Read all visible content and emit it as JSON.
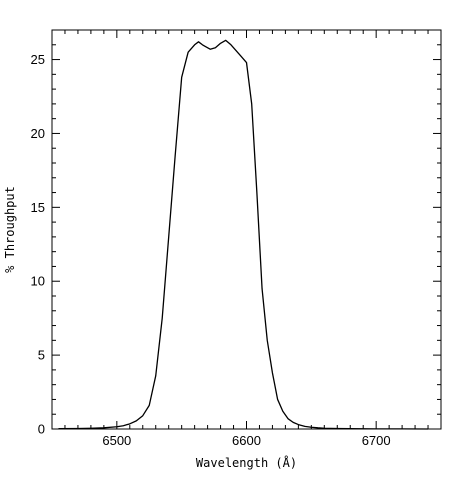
{
  "chart_data": {
    "type": "line",
    "title": "",
    "xlabel": "Wavelength (Å)",
    "ylabel": "% Throughput",
    "xlim": [
      6450,
      6750
    ],
    "ylim": [
      0,
      27
    ],
    "x_ticks": [
      6500,
      6600,
      6700
    ],
    "y_ticks": [
      0,
      5,
      10,
      15,
      20,
      25
    ],
    "x_minor_step": 10,
    "y_minor_step": 1,
    "grid": false,
    "line_color": "#000000",
    "series": [
      {
        "x": [
          6455,
          6470,
          6480,
          6490,
          6500,
          6505,
          6510,
          6515,
          6520,
          6525,
          6530,
          6535,
          6540,
          6545,
          6550,
          6555,
          6560,
          6563,
          6566,
          6568,
          6572,
          6576,
          6580,
          6584,
          6588,
          6592,
          6596,
          6600,
          6604,
          6608,
          6612,
          6616,
          6620,
          6624,
          6628,
          6632,
          6636,
          6640,
          6645,
          6650,
          6655,
          6660,
          6670,
          6680,
          6700,
          6720,
          6740
        ],
        "y": [
          0.02,
          0.03,
          0.05,
          0.08,
          0.15,
          0.22,
          0.35,
          0.55,
          0.9,
          1.6,
          3.6,
          7.5,
          13.0,
          18.5,
          23.8,
          25.5,
          26.0,
          26.2,
          26.0,
          25.9,
          25.7,
          25.8,
          26.1,
          26.3,
          26.0,
          25.6,
          25.2,
          24.8,
          22.0,
          16.0,
          9.5,
          6.0,
          3.8,
          2.0,
          1.2,
          0.7,
          0.45,
          0.3,
          0.18,
          0.12,
          0.08,
          0.05,
          0.03,
          0.02,
          0.01,
          0.01,
          0.0
        ]
      }
    ]
  }
}
